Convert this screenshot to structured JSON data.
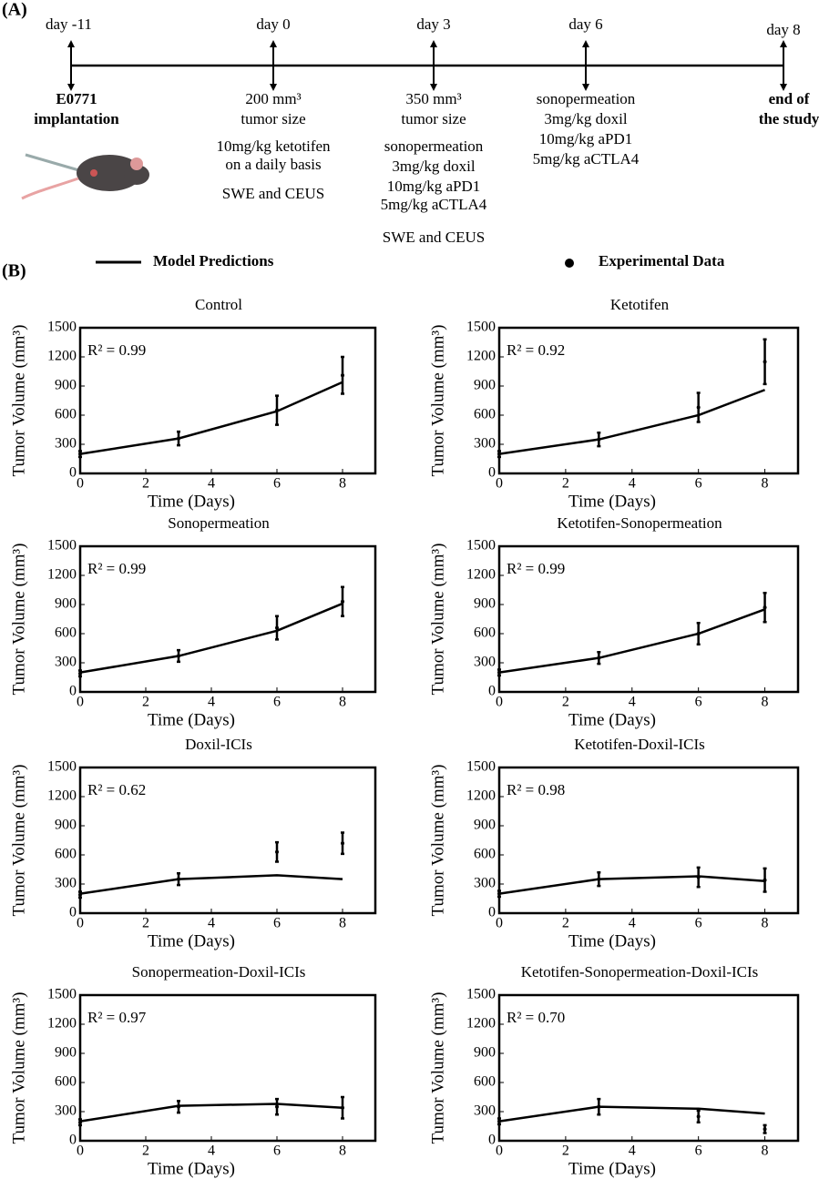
{
  "panel_a": {
    "label": "(A)",
    "timepoints": [
      {
        "day": "day -11",
        "notes": [
          "E0771",
          "implantation"
        ],
        "bold": true
      },
      {
        "day": "day 0",
        "notes": [
          "200 mm³",
          "tumor size",
          "10mg/kg ketotifen",
          "on a daily basis",
          "SWE and CEUS"
        ],
        "bold": false
      },
      {
        "day": "day 3",
        "notes": [
          "350 mm³",
          "tumor size",
          "sonopermeation",
          "3mg/kg doxil",
          "10mg/kg aPD1",
          "5mg/kg aCTLA4",
          "SWE and CEUS"
        ],
        "bold": false
      },
      {
        "day": "day 6",
        "notes": [
          "sonopermeation",
          "3mg/kg doxil",
          "10mg/kg aPD1",
          "5mg/kg aCTLA4"
        ],
        "bold": false
      },
      {
        "day": "day 8",
        "notes": [
          "end of",
          "the study"
        ],
        "bold": true
      }
    ]
  },
  "panel_b": {
    "label": "(B)"
  },
  "legend": {
    "model": "Model Predictions",
    "data": "Experimental Data"
  },
  "chart_data": [
    {
      "type": "line",
      "title": "Control",
      "xlabel": "Time (Days)",
      "ylabel": "Tumor Volume (mm³)",
      "annotation": "R² = 0.99",
      "xlim": [
        0,
        9
      ],
      "xticks": [
        0,
        2,
        4,
        6,
        8
      ],
      "ylim": [
        0,
        1500
      ],
      "yticks": [
        0,
        300,
        600,
        900,
        1200,
        1500
      ],
      "series": [
        {
          "style": "line",
          "color": "#000000",
          "x": [
            0,
            3,
            6,
            8
          ],
          "values": [
            200,
            360,
            640,
            940
          ]
        },
        {
          "style": "points",
          "color": "#000000",
          "x": [
            0,
            3,
            6,
            8
          ],
          "values": [
            200,
            360,
            650,
            1010
          ],
          "errors": [
            30,
            70,
            150,
            190
          ]
        }
      ]
    },
    {
      "type": "line",
      "title": "Ketotifen",
      "xlabel": "Time (Days)",
      "ylabel": "Tumor Volume (mm³)",
      "annotation": "R² = 0.92",
      "xlim": [
        0,
        9
      ],
      "xticks": [
        0,
        2,
        4,
        6,
        8
      ],
      "ylim": [
        0,
        1500
      ],
      "yticks": [
        0,
        300,
        600,
        900,
        1200,
        1500
      ],
      "series": [
        {
          "style": "line",
          "color": "#000000",
          "x": [
            0,
            3,
            6,
            8
          ],
          "values": [
            200,
            350,
            600,
            860
          ]
        },
        {
          "style": "points",
          "color": "#000000",
          "x": [
            0,
            3,
            6,
            8
          ],
          "values": [
            200,
            350,
            680,
            1150
          ],
          "errors": [
            30,
            70,
            150,
            230
          ]
        }
      ]
    },
    {
      "type": "line",
      "title": "Sonopermeation",
      "xlabel": "Time (Days)",
      "ylabel": "Tumor Volume (mm³)",
      "annotation": "R² = 0.99",
      "xlim": [
        0,
        9
      ],
      "xticks": [
        0,
        2,
        4,
        6,
        8
      ],
      "ylim": [
        0,
        1500
      ],
      "yticks": [
        0,
        300,
        600,
        900,
        1200,
        1500
      ],
      "series": [
        {
          "style": "line",
          "color": "#000000",
          "x": [
            0,
            3,
            6,
            8
          ],
          "values": [
            200,
            370,
            630,
            910
          ]
        },
        {
          "style": "points",
          "color": "#000000",
          "x": [
            0,
            3,
            6,
            8
          ],
          "values": [
            190,
            370,
            660,
            930
          ],
          "errors": [
            30,
            60,
            120,
            150
          ]
        }
      ]
    },
    {
      "type": "line",
      "title": "Ketotifen-Sonopermeation",
      "xlabel": "Time (Days)",
      "ylabel": "Tumor Volume (mm³)",
      "annotation": "R² = 0.99",
      "xlim": [
        0,
        9
      ],
      "xticks": [
        0,
        2,
        4,
        6,
        8
      ],
      "ylim": [
        0,
        1500
      ],
      "yticks": [
        0,
        300,
        600,
        900,
        1200,
        1500
      ],
      "series": [
        {
          "style": "line",
          "color": "#000000",
          "x": [
            0,
            3,
            6,
            8
          ],
          "values": [
            200,
            350,
            600,
            850
          ]
        },
        {
          "style": "points",
          "color": "#000000",
          "x": [
            0,
            3,
            6,
            8
          ],
          "values": [
            200,
            350,
            600,
            870
          ],
          "errors": [
            30,
            60,
            110,
            150
          ]
        }
      ]
    },
    {
      "type": "line",
      "title": "Doxil-ICIs",
      "xlabel": "Time (Days)",
      "ylabel": "Tumor Volume (mm³)",
      "annotation": "R² = 0.62",
      "xlim": [
        0,
        9
      ],
      "xticks": [
        0,
        2,
        4,
        6,
        8
      ],
      "ylim": [
        0,
        1500
      ],
      "yticks": [
        0,
        300,
        600,
        900,
        1200,
        1500
      ],
      "series": [
        {
          "style": "line",
          "color": "#000000",
          "x": [
            0,
            3,
            6,
            8
          ],
          "values": [
            200,
            350,
            390,
            350
          ]
        },
        {
          "style": "points",
          "color": "#000000",
          "x": [
            0,
            3,
            6,
            8
          ],
          "values": [
            190,
            350,
            630,
            720
          ],
          "errors": [
            30,
            60,
            100,
            110
          ]
        }
      ]
    },
    {
      "type": "line",
      "title": "Ketotifen-Doxil-ICIs",
      "xlabel": "Time (Days)",
      "ylabel": "Tumor Volume (mm³)",
      "annotation": "R² = 0.98",
      "xlim": [
        0,
        9
      ],
      "xticks": [
        0,
        2,
        4,
        6,
        8
      ],
      "ylim": [
        0,
        1500
      ],
      "yticks": [
        0,
        300,
        600,
        900,
        1200,
        1500
      ],
      "series": [
        {
          "style": "line",
          "color": "#000000",
          "x": [
            0,
            3,
            6,
            8
          ],
          "values": [
            200,
            350,
            380,
            330
          ]
        },
        {
          "style": "points",
          "color": "#000000",
          "x": [
            0,
            3,
            6,
            8
          ],
          "values": [
            200,
            350,
            370,
            340
          ],
          "errors": [
            30,
            70,
            100,
            120
          ]
        }
      ]
    },
    {
      "type": "line",
      "title": "Sonopermeation-Doxil-ICIs",
      "xlabel": "Time (Days)",
      "ylabel": "Tumor Volume (mm³)",
      "annotation": "R² = 0.97",
      "xlim": [
        0,
        9
      ],
      "xticks": [
        0,
        2,
        4,
        6,
        8
      ],
      "ylim": [
        0,
        1500
      ],
      "yticks": [
        0,
        300,
        600,
        900,
        1200,
        1500
      ],
      "series": [
        {
          "style": "line",
          "color": "#000000",
          "x": [
            0,
            3,
            6,
            8
          ],
          "values": [
            200,
            360,
            380,
            340
          ]
        },
        {
          "style": "points",
          "color": "#000000",
          "x": [
            0,
            3,
            6,
            8
          ],
          "values": [
            190,
            350,
            350,
            340
          ],
          "errors": [
            30,
            60,
            80,
            110
          ]
        }
      ]
    },
    {
      "type": "line",
      "title": "Ketotifen-Sonopermeation-Doxil-ICIs",
      "xlabel": "Time (Days)",
      "ylabel": "Tumor Volume (mm³)",
      "annotation": "R² = 0.70",
      "xlim": [
        0,
        9
      ],
      "xticks": [
        0,
        2,
        4,
        6,
        8
      ],
      "ylim": [
        0,
        1500
      ],
      "yticks": [
        0,
        300,
        600,
        900,
        1200,
        1500
      ],
      "series": [
        {
          "style": "line",
          "color": "#000000",
          "x": [
            0,
            3,
            6,
            8
          ],
          "values": [
            200,
            350,
            330,
            280
          ]
        },
        {
          "style": "points",
          "color": "#000000",
          "x": [
            0,
            3,
            6,
            8
          ],
          "values": [
            200,
            350,
            250,
            120
          ],
          "errors": [
            30,
            80,
            60,
            40
          ]
        }
      ]
    }
  ]
}
